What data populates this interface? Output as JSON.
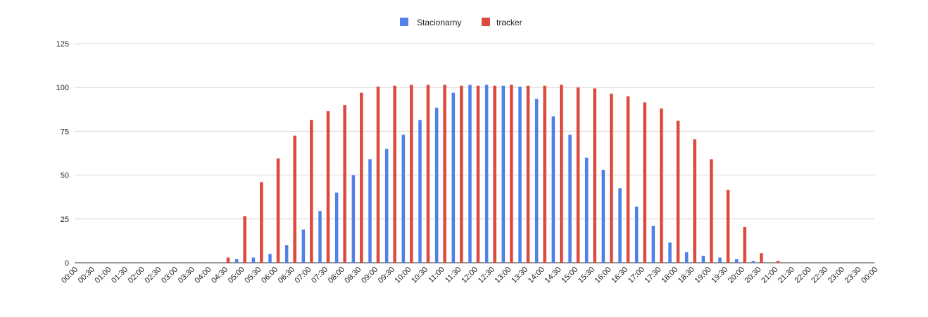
{
  "chart_data": {
    "type": "bar",
    "title": "",
    "xlabel": "",
    "ylabel": "",
    "ylim": [
      0,
      125
    ],
    "yticks": [
      0,
      25,
      50,
      75,
      100,
      125
    ],
    "grid": true,
    "legend": "top-center",
    "categories": [
      "00:00",
      "00:30",
      "01:00",
      "01:30",
      "02:00",
      "02:30",
      "03:00",
      "03:30",
      "04:00",
      "04:30",
      "05:00",
      "05:30",
      "06:00",
      "06:30",
      "07:00",
      "07:30",
      "08:00",
      "08:30",
      "09:00",
      "09:30",
      "10:00",
      "10:30",
      "11:00",
      "11:30",
      "12:00",
      "12:30",
      "13:00",
      "13:30",
      "14:00",
      "14:30",
      "15:00",
      "15:30",
      "16:00",
      "16:30",
      "17:00",
      "17:30",
      "18:00",
      "18:30",
      "19:00",
      "19:30",
      "20:00",
      "20:30",
      "21:00",
      "21:30",
      "22:00",
      "22:30",
      "23:00",
      "23:30",
      "00:00"
    ],
    "series": [
      {
        "name": "Stacionarny",
        "color": "#4f81e8",
        "values": [
          0,
          0,
          0,
          0,
          0,
          0,
          0,
          0,
          0,
          0,
          2,
          3,
          5,
          10,
          19,
          29.5,
          40,
          50,
          59,
          65,
          73,
          81.5,
          88.5,
          97,
          101.5,
          101.5,
          101,
          100.5,
          93.5,
          83.5,
          73,
          60,
          53,
          42.5,
          32,
          21,
          11.5,
          6,
          4,
          3,
          2,
          1,
          0,
          0,
          0,
          0,
          0,
          0,
          0
        ]
      },
      {
        "name": "tracker",
        "color": "#db4a3d",
        "values": [
          0,
          0,
          0,
          0,
          0,
          0,
          0,
          0,
          0,
          3,
          26.5,
          46,
          59.5,
          72.5,
          81.5,
          86.5,
          90,
          97,
          100.5,
          101,
          101.5,
          101.5,
          101.5,
          101,
          101,
          101,
          101.5,
          101,
          101,
          101.5,
          100,
          99.5,
          96.5,
          95,
          91.5,
          88,
          81,
          70.5,
          59,
          41.5,
          20.5,
          5.5,
          1,
          0,
          0,
          0,
          0,
          0,
          0
        ]
      }
    ]
  }
}
